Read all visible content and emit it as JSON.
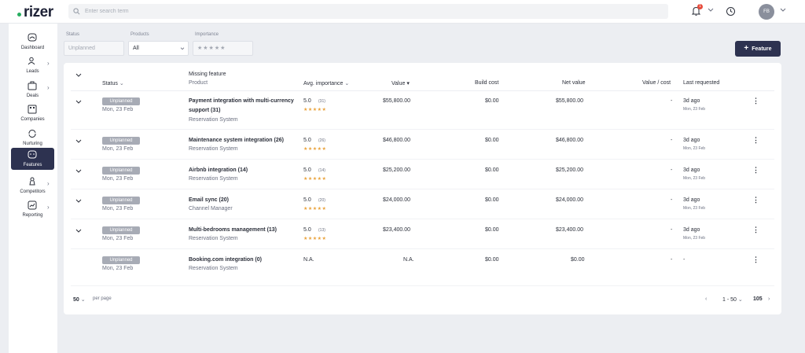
{
  "app": {
    "logo": "rizer",
    "brand_color": "#27ae60",
    "accent": "#2d3250"
  },
  "search": {
    "placeholder": "Enter search term"
  },
  "notifications": {
    "count": "1"
  },
  "user": {
    "initials": "FB"
  },
  "sidebar": {
    "items": [
      {
        "label": "Dashboard",
        "icon": "dashboard-icon",
        "has_chevron": false
      },
      {
        "label": "Leads",
        "icon": "users-icon",
        "has_chevron": true
      },
      {
        "label": "Deals",
        "icon": "briefcase-icon",
        "has_chevron": true
      },
      {
        "label": "Companies",
        "icon": "building-icon",
        "has_chevron": false
      },
      {
        "label": "Nurturing",
        "icon": "refresh-icon",
        "has_chevron": false
      },
      {
        "label": "Features",
        "icon": "feature-icon",
        "has_chevron": false,
        "active": true
      },
      {
        "label": "Competitors",
        "icon": "chess-icon",
        "has_chevron": true
      },
      {
        "label": "Reporting",
        "icon": "report-icon",
        "has_chevron": true
      }
    ]
  },
  "filters": {
    "status_label": "Status",
    "status_value": "Unplanned",
    "products_label": "Products",
    "products_value": "All",
    "importance_label": "Importance",
    "importance_value": "★★★★★"
  },
  "add_button": {
    "label": "Feature",
    "icon": "plus-icon"
  },
  "table": {
    "headers": {
      "missing_feature": "Missing feature",
      "status": "Status",
      "product": "Product",
      "avg_importance": "Avg. importance",
      "value": "Value",
      "build_cost": "Build cost",
      "net_value": "Net value",
      "value_cost": "Value / cost",
      "last_requested": "Last requested"
    },
    "rows": [
      {
        "status": "Unplanned",
        "date": "Mon, 23 Feb",
        "feature_line1": "Payment integration with multi-currency",
        "feature_line2": "support (31)",
        "product": "Reservation System",
        "importance": "5.0",
        "votes": "(31)",
        "stars": "★★★★★",
        "value": "$55,800.00",
        "build_cost": "$0.00",
        "net_value": "$55,800.00",
        "value_cost": "-",
        "last": "3d ago",
        "last_date": "Mon, 23 Feb",
        "expandable": true
      },
      {
        "status": "Unplanned",
        "date": "Mon, 23 Feb",
        "feature_line1": "Maintenance system integration (26)",
        "feature_line2": "",
        "product": "Reservation System",
        "importance": "5.0",
        "votes": "(26)",
        "stars": "★★★★★",
        "value": "$46,800.00",
        "build_cost": "$0.00",
        "net_value": "$46,800.00",
        "value_cost": "-",
        "last": "3d ago",
        "last_date": "Mon, 23 Feb",
        "expandable": true
      },
      {
        "status": "Unplanned",
        "date": "Mon, 23 Feb",
        "feature_line1": "Airbnb integration (14)",
        "feature_line2": "",
        "product": "Reservation System",
        "importance": "5.0",
        "votes": "(14)",
        "stars": "★★★★★",
        "value": "$25,200.00",
        "build_cost": "$0.00",
        "net_value": "$25,200.00",
        "value_cost": "-",
        "last": "3d ago",
        "last_date": "Mon, 23 Feb",
        "expandable": true
      },
      {
        "status": "Unplanned",
        "date": "Mon, 23 Feb",
        "feature_line1": "Email sync (20)",
        "feature_line2": "",
        "product": "Channel Manager",
        "importance": "5.0",
        "votes": "(20)",
        "stars": "★★★★★",
        "value": "$24,000.00",
        "build_cost": "$0.00",
        "net_value": "$24,000.00",
        "value_cost": "-",
        "last": "3d ago",
        "last_date": "Mon, 23 Feb",
        "expandable": true
      },
      {
        "status": "Unplanned",
        "date": "Mon, 23 Feb",
        "feature_line1": "Multi-bedrooms management (13)",
        "feature_line2": "",
        "product": "Reservation System",
        "importance": "5.0",
        "votes": "(13)",
        "stars": "★★★★★",
        "value": "$23,400.00",
        "build_cost": "$0.00",
        "net_value": "$23,400.00",
        "value_cost": "-",
        "last": "3d ago",
        "last_date": "Mon, 23 Feb",
        "expandable": true
      },
      {
        "status": "Unplanned",
        "date": "Mon, 23 Feb",
        "feature_line1": "Booking.com integration (0)",
        "feature_line2": "",
        "product": "Reservation System",
        "importance": "N.A.",
        "votes": "",
        "stars": "",
        "value": "N.A.",
        "build_cost": "$0.00",
        "net_value": "$0.00",
        "value_cost": "-",
        "last": "-",
        "last_date": "",
        "expandable": false
      }
    ]
  },
  "pagination": {
    "per_page": "50",
    "per_page_label": "per page",
    "range": "1 - 50",
    "total": "105"
  }
}
